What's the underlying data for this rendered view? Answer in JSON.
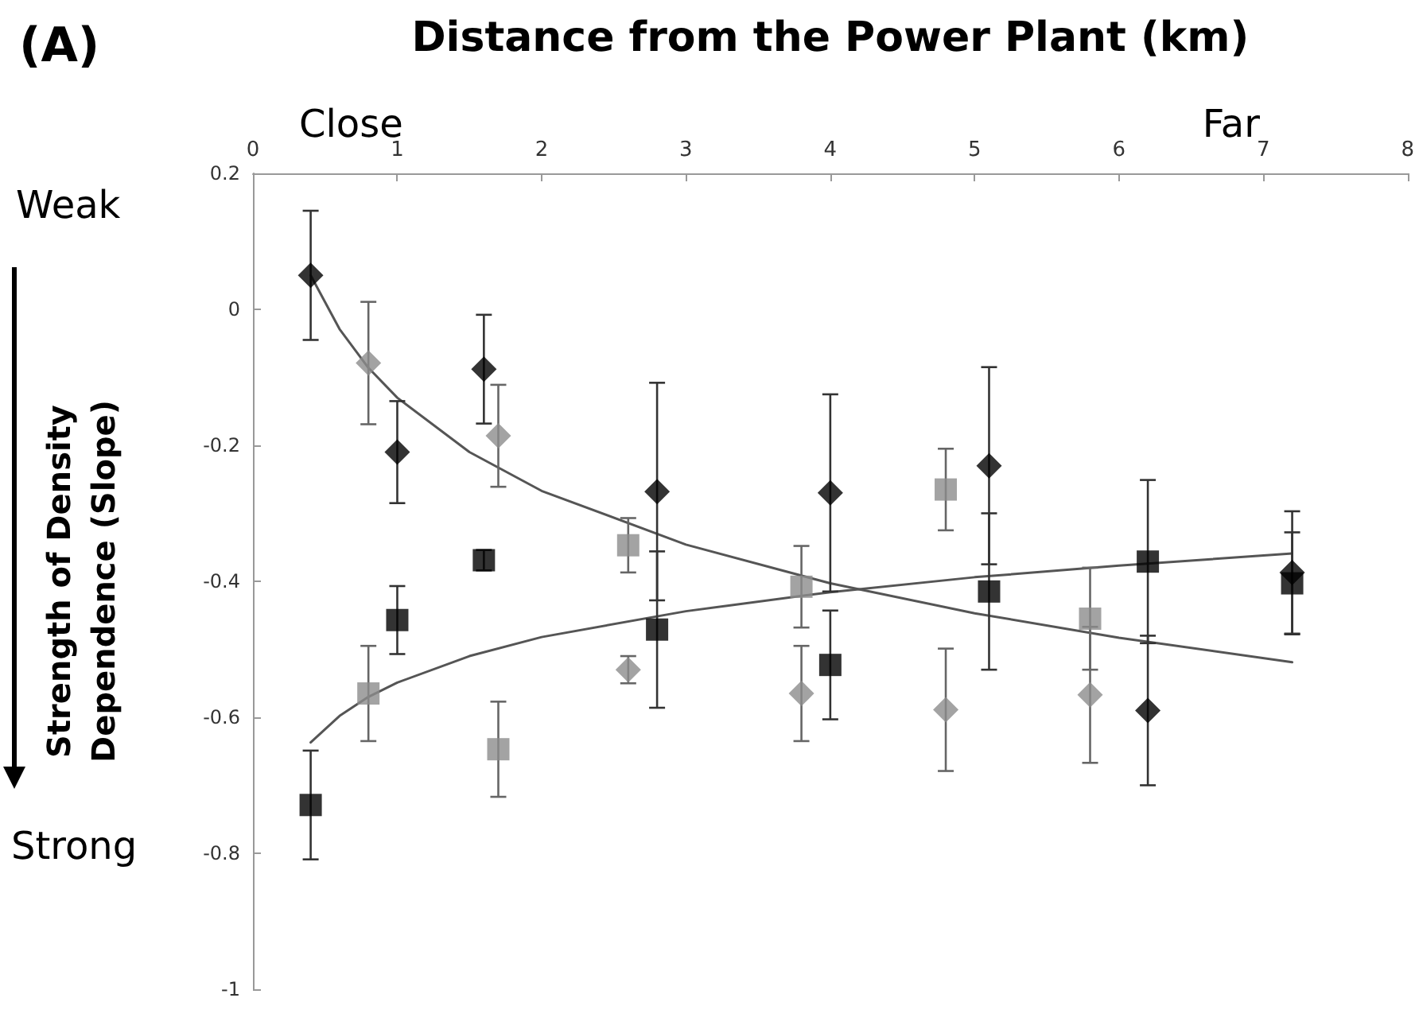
{
  "chart_data": {
    "type": "scatter",
    "xlabel": "Distance from the Power Plant (km)",
    "ylabel": "Strength of Density Dependence (Slope)",
    "annotations": [
      "(A)",
      "Close",
      "Far",
      "Weak",
      "Strong"
    ],
    "xlim": [
      0,
      8
    ],
    "xticks": [
      0,
      1,
      2,
      3,
      4,
      5,
      6,
      7,
      8
    ],
    "ylim": [
      -1,
      0.2
    ],
    "yticks": [
      -1,
      -0.8,
      -0.6,
      -0.4,
      -0.2,
      0,
      0.2
    ],
    "grid": false,
    "series": [
      {
        "marker": "diamond",
        "color": "#000000",
        "x": [
          0.4,
          1.0,
          1.6,
          2.8,
          4.0,
          5.1,
          6.2,
          7.2
        ],
        "values": [
          0.05,
          -0.21,
          -0.088,
          -0.268,
          -0.27,
          -0.23,
          -0.59,
          -0.387
        ],
        "errors": [
          0.095,
          0.075,
          0.08,
          0.16,
          0.145,
          0.145,
          0.11,
          0.09
        ]
      },
      {
        "marker": "diamond",
        "color": "#8c8c8c",
        "x": [
          0.8,
          1.7,
          2.6,
          3.8,
          4.8,
          5.8
        ],
        "values": [
          -0.079,
          -0.186,
          -0.53,
          -0.565,
          -0.589,
          -0.567
        ],
        "errors": [
          0.09,
          0.075,
          0.02,
          0.07,
          0.09,
          0.1
        ]
      },
      {
        "marker": "square",
        "color": "#000000",
        "x": [
          0.4,
          1.0,
          1.6,
          2.8,
          4.0,
          5.1,
          6.2,
          7.2
        ],
        "values": [
          -0.729,
          -0.457,
          -0.369,
          -0.471,
          -0.523,
          -0.415,
          -0.371,
          -0.403
        ],
        "errors": [
          0.08,
          0.05,
          0.015,
          0.115,
          0.08,
          0.115,
          0.12,
          0.075
        ]
      },
      {
        "marker": "square",
        "color": "#8c8c8c",
        "x": [
          0.8,
          1.7,
          2.6,
          3.8,
          4.8,
          5.8
        ],
        "values": [
          -0.565,
          -0.647,
          -0.347,
          -0.408,
          -0.265,
          -0.455
        ],
        "errors": [
          0.07,
          0.07,
          0.04,
          0.06,
          0.06,
          0.075
        ]
      },
      {
        "type": "line",
        "marker": "none",
        "color": "#555555",
        "x": [
          0.4,
          0.6,
          0.8,
          1,
          1.5,
          2,
          3,
          4,
          5,
          6,
          7.2
        ],
        "values": [
          0.05,
          -0.029,
          -0.086,
          -0.13,
          -0.21,
          -0.267,
          -0.346,
          -0.403,
          -0.447,
          -0.483,
          -0.519
        ]
      },
      {
        "type": "line",
        "marker": "none",
        "color": "#555555",
        "x": [
          0.4,
          0.6,
          0.8,
          1,
          1.5,
          2,
          3,
          4,
          5,
          6,
          7.2
        ],
        "values": [
          -0.637,
          -0.598,
          -0.57,
          -0.549,
          -0.51,
          -0.482,
          -0.444,
          -0.416,
          -0.394,
          -0.377,
          -0.359
        ]
      }
    ]
  }
}
